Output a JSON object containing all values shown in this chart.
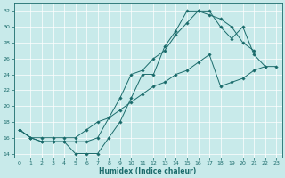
{
  "xlabel": "Humidex (Indice chaleur)",
  "bg_color": "#c8eaea",
  "line_color": "#1a6b6b",
  "grid_color": "#ffffff",
  "xlim": [
    -0.5,
    23.5
  ],
  "ylim": [
    13.5,
    33
  ],
  "xticks": [
    0,
    1,
    2,
    3,
    4,
    5,
    6,
    7,
    8,
    9,
    10,
    11,
    12,
    13,
    14,
    15,
    16,
    17,
    18,
    19,
    20,
    21,
    22,
    23
  ],
  "yticks": [
    14,
    16,
    18,
    20,
    22,
    24,
    26,
    28,
    30,
    32
  ],
  "line1_x": [
    0,
    1,
    2,
    3,
    4,
    5,
    6,
    7,
    8,
    9,
    10,
    11,
    12,
    13,
    14,
    15,
    16,
    17,
    18,
    19,
    20,
    21
  ],
  "line1_y": [
    17,
    16,
    15.5,
    15.5,
    15.5,
    14,
    14,
    14,
    16,
    18,
    21,
    24,
    24,
    27.5,
    29.5,
    32,
    32,
    31.5,
    31,
    30,
    28,
    27
  ],
  "line2_x": [
    0,
    1,
    2,
    3,
    4,
    5,
    6,
    7,
    8,
    9,
    10,
    11,
    12,
    13,
    14,
    15,
    16,
    17,
    18,
    19,
    20,
    21,
    22
  ],
  "line2_y": [
    17,
    16,
    15.5,
    15.5,
    15.5,
    15.5,
    15.5,
    16,
    18.5,
    21,
    24,
    24.5,
    26,
    27,
    29,
    30.5,
    32,
    32,
    30,
    28.5,
    30,
    26.5,
    25
  ],
  "line3_x": [
    0,
    1,
    2,
    3,
    4,
    5,
    6,
    7,
    8,
    9,
    10,
    11,
    12,
    13,
    14,
    15,
    16,
    17,
    18,
    19,
    20,
    21,
    22,
    23
  ],
  "line3_y": [
    17,
    16,
    16,
    16,
    16,
    16,
    17,
    18,
    18.5,
    19.5,
    20.5,
    21.5,
    22.5,
    23,
    24,
    24.5,
    25.5,
    26.5,
    22.5,
    23,
    23.5,
    24.5,
    25,
    25
  ]
}
